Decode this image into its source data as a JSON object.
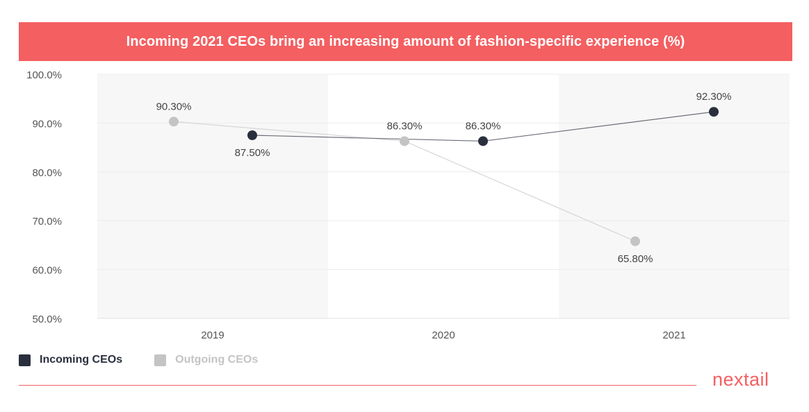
{
  "colors": {
    "accent": "#f45f61",
    "incoming": "#2a2f3d",
    "outgoing": "#c4c4c4",
    "band": "#f7f7f7",
    "axis_text": "#555555",
    "label_text": "#444444"
  },
  "brand": {
    "name": "nextail"
  },
  "chart_data": {
    "type": "line",
    "title": "Incoming 2021 CEOs bring an increasing amount of fashion-specific experience (%)",
    "xlabel": "",
    "ylabel": "",
    "categories": [
      "2019",
      "2020",
      "2021"
    ],
    "ylim": [
      50,
      100
    ],
    "y_ticks": [
      {
        "value": 100,
        "label": "100.0%"
      },
      {
        "value": 90,
        "label": "90.0%"
      },
      {
        "value": 80,
        "label": "80.0%"
      },
      {
        "value": 70,
        "label": "70.0%"
      },
      {
        "value": 60,
        "label": "60.0%"
      },
      {
        "value": 50,
        "label": "50.0%"
      }
    ],
    "grid": true,
    "legend_position": "bottom-left",
    "series": [
      {
        "name": "Incoming CEOs",
        "key": "incoming",
        "values": [
          87.5,
          86.3,
          92.3
        ],
        "labels": [
          "87.50%",
          "86.30%",
          "92.30%"
        ],
        "label_side": [
          "below",
          "above",
          "above"
        ]
      },
      {
        "name": "Outgoing CEOs",
        "key": "outgoing",
        "values": [
          90.3,
          86.3,
          65.8
        ],
        "labels": [
          "90.30%",
          "86.30%",
          "65.80%"
        ],
        "label_side": [
          "above",
          "above",
          "below"
        ]
      }
    ]
  }
}
